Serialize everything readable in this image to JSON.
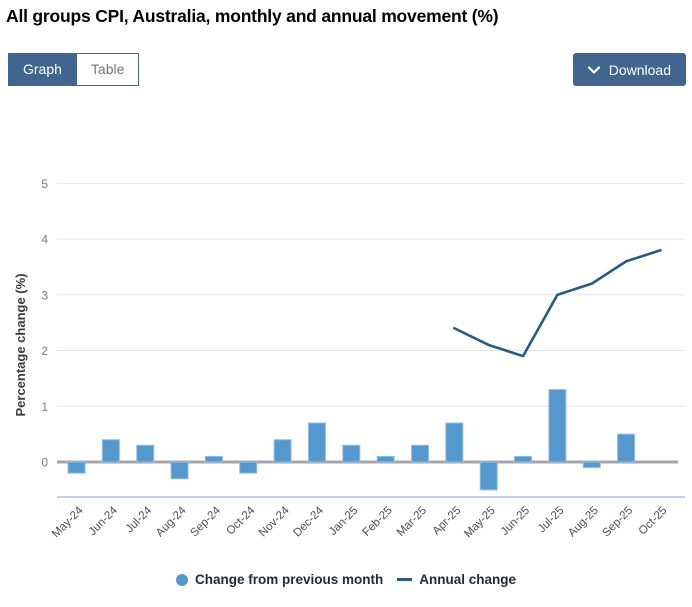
{
  "header": {
    "title": "All groups CPI, Australia, monthly and annual movement (%)"
  },
  "toolbar": {
    "graph_label": "Graph",
    "table_label": "Table",
    "download_label": "Download",
    "download_icon": "chevron-down"
  },
  "legend": {
    "monthly_label": "Change from previous month",
    "annual_label": "Annual change"
  },
  "colors": {
    "accent": "#40658f",
    "bar": "#5598ce",
    "bar_edge": "#8fc0e4",
    "line": "#275a84",
    "grid": "#e5e5e5",
    "zero_line": "#a6a6a6",
    "bottom_axis": "#abc3dc",
    "y_tick_text": "#7b7b7b",
    "x_tick_text": "#4e4e4e",
    "axis_title_text": "#3b3b3b"
  },
  "chart_data": {
    "type": "bar",
    "title": "All groups CPI, Australia, monthly and annual movement (%)",
    "categories": [
      "May-24",
      "Jun-24",
      "Jul-24",
      "Aug-24",
      "Sep-24",
      "Oct-24",
      "Nov-24",
      "Dec-24",
      "Jan-25",
      "Feb-25",
      "Mar-25",
      "Apr-25",
      "May-25",
      "Jun-25",
      "Jul-25",
      "Aug-25",
      "Sep-25",
      "Oct-25"
    ],
    "series": [
      {
        "name": "Change from previous month",
        "type": "bar",
        "values": [
          -0.2,
          0.4,
          0.3,
          -0.3,
          0.1,
          -0.2,
          0.4,
          0.7,
          0.3,
          0.1,
          0.3,
          0.7,
          -0.5,
          0.1,
          1.3,
          -0.1,
          0.5,
          0.0
        ]
      },
      {
        "name": "Annual change",
        "type": "line",
        "values": [
          null,
          null,
          null,
          null,
          null,
          null,
          null,
          null,
          null,
          null,
          null,
          2.4,
          2.1,
          1.9,
          3.0,
          3.2,
          3.6,
          3.8
        ]
      }
    ],
    "xlabel": "",
    "ylabel": "Percentage change (%)",
    "yticks": [
      0,
      1,
      2,
      3,
      4,
      5
    ],
    "ylim": [
      -0.65,
      5.4
    ],
    "grid": true,
    "legend_position": "bottom"
  }
}
